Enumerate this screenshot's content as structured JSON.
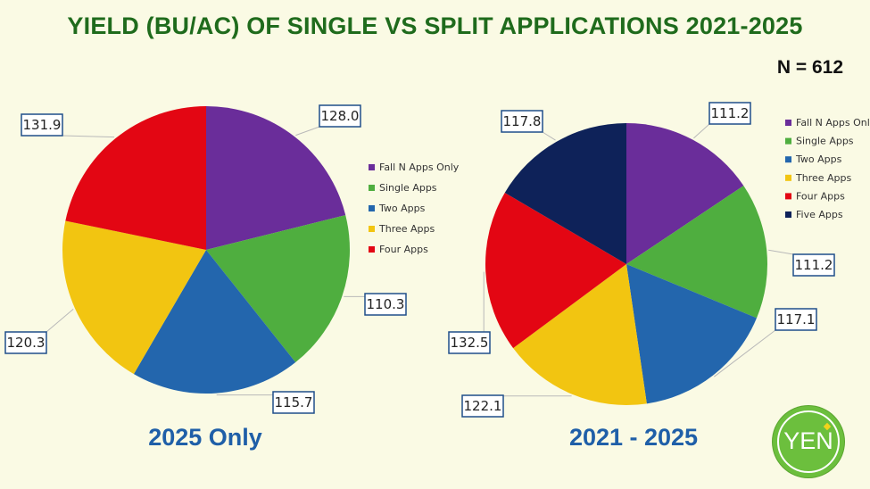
{
  "title": "YIELD (BU/AC) OF SINGLE VS SPLIT APPLICATIONS 2021-2025",
  "n_label": "N = 612",
  "logo_text": "YEN",
  "chart_data": [
    {
      "type": "pie",
      "title": "2025 Only",
      "legend": [
        "Fall N Apps Only",
        "Single Apps",
        "Two Apps",
        "Three Apps",
        "Four Apps"
      ],
      "colors": [
        "#6a2d9a",
        "#4fae3f",
        "#2366ad",
        "#f2c511",
        "#e30613"
      ],
      "values": [
        128.0,
        110.3,
        115.7,
        120.3,
        131.9
      ],
      "labels": [
        "128.0",
        "110.3",
        "115.7",
        "120.3",
        "131.9"
      ],
      "legend_position": "right"
    },
    {
      "type": "pie",
      "title": "2021 - 2025",
      "legend": [
        "Fall N Apps Only",
        "Single Apps",
        "Two Apps",
        "Three Apps",
        "Four Apps",
        "Five Apps"
      ],
      "colors": [
        "#6a2d9a",
        "#4fae3f",
        "#2366ad",
        "#f2c511",
        "#e30613",
        "#0e2259"
      ],
      "values": [
        111.2,
        111.2,
        117.1,
        122.1,
        132.5,
        117.8
      ],
      "labels": [
        "111.2",
        "111.2",
        "117.1",
        "122.1",
        "132.5",
        "117.8"
      ],
      "legend_position": "right"
    }
  ]
}
